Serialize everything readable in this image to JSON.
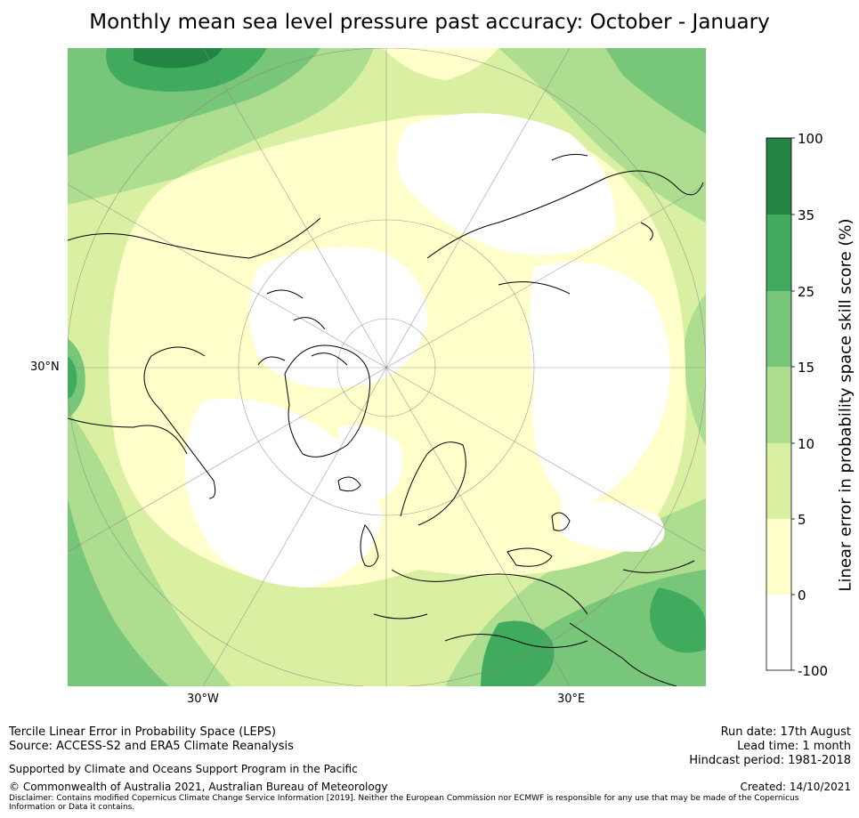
{
  "title": "Monthly mean sea level pressure past accuracy: October - January",
  "map": {
    "lat_label": "30°N",
    "lon_labels": [
      "30°W",
      "30°E"
    ],
    "region": "Northern hemisphere, North Pole stereographic"
  },
  "colorbar": {
    "title": "Linear error in probability space skill score (%)",
    "ticks": [
      "100",
      "35",
      "25",
      "15",
      "10",
      "5",
      "0",
      "-100"
    ],
    "colors": [
      "#ffffff",
      "#ffffcc",
      "#d9f0a3",
      "#addd8e",
      "#78c679",
      "#41ab5d",
      "#238443"
    ]
  },
  "footer": {
    "line1": "Tercile Linear Error in Probability Space (LEPS)",
    "line2": "Source: ACCESS-S2 and ERA5 Climate Reanalysis",
    "support": "Supported by Climate and Oceans Support Program in the Pacific",
    "copyright": "© Commonwealth of Australia 2021, Australian Bureau of Meteorology",
    "disclaimer": "Disclaimer: Contains modified Copernicus Climate Change Service Information [2019]. Neither the European Commission nor ECMWF is responsible for any use that may be made of the Copernicus Information or Data it contains.",
    "run_date": "Run date: 17th August",
    "lead_time": "Lead time: 1 month",
    "hindcast": "Hindcast period: 1981-2018",
    "created": "Created: 14/10/2021"
  }
}
